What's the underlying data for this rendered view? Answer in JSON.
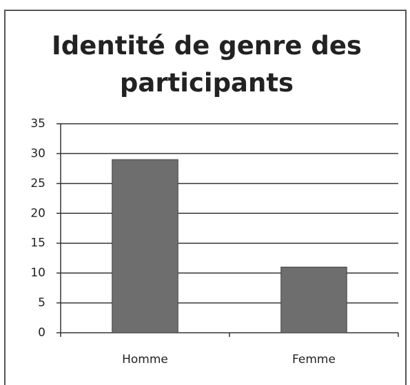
{
  "chart_data": {
    "type": "bar",
    "title": "Identité de genre des participants",
    "categories": [
      "Homme",
      "Femme"
    ],
    "values": [
      29,
      11
    ],
    "color": "#6e6e6e",
    "ylim": [
      0,
      35
    ],
    "yticks": [
      0,
      5,
      10,
      15,
      20,
      25,
      30,
      35
    ],
    "grid": true
  }
}
